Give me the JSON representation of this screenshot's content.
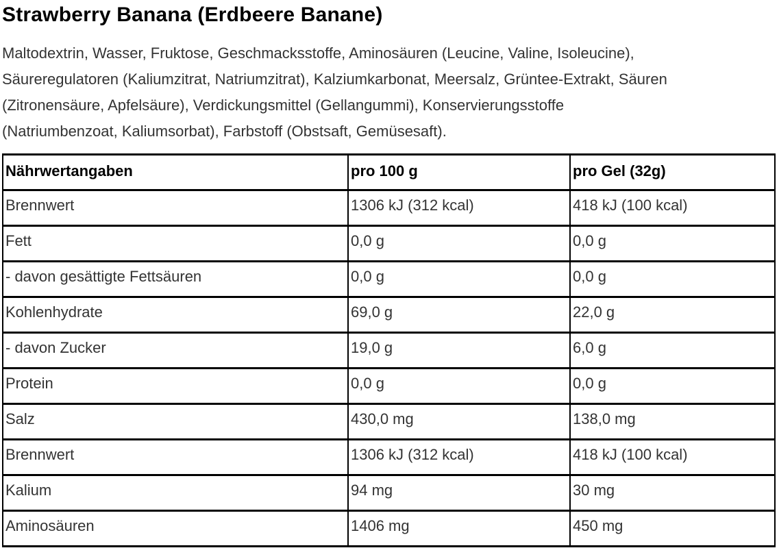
{
  "page": {
    "title": "Strawberry Banana (Erdbeere Banane)",
    "ingredients": "Maltodextrin, Wasser, Fruktose, Geschmacksstoffe, Aminosäuren (Leucine, Valine, Isoleucine),\nSäureregulatoren (Kaliumzitrat, Natriumzitrat), Kalziumkarbonat, Meersalz, Grüntee-Extrakt, Säuren\n(Zitronensäure, Apfelsäure), Verdickungsmittel (Gellangummi), Konservierungsstoffe\n(Natriumbenzoat, Kaliumsorbat), Farbstoff (Obstsaft, Gemüsesaft)."
  },
  "colors": {
    "title_text": "#000000",
    "body_text": "#333333",
    "table_border": "#000000",
    "background": "#ffffff"
  },
  "nutrition_table": {
    "headers": [
      "Nährwertangaben",
      "pro 100 g",
      "pro Gel (32g)"
    ],
    "rows": [
      {
        "label": "Brennwert",
        "per_100g": "1306 kJ (312 kcal)",
        "per_gel": "418 kJ (100 kcal)"
      },
      {
        "label": "Fett",
        "per_100g": "0,0 g",
        "per_gel": "0,0 g"
      },
      {
        "label": "- davon gesättigte Fettsäuren",
        "per_100g": "0,0 g",
        "per_gel": "0,0 g"
      },
      {
        "label": "Kohlenhydrate",
        "per_100g": "69,0 g",
        "per_gel": "22,0 g"
      },
      {
        "label": "- davon Zucker",
        "per_100g": "19,0 g",
        "per_gel": "6,0 g"
      },
      {
        "label": "Protein",
        "per_100g": "0,0 g",
        "per_gel": "0,0 g"
      },
      {
        "label": "Salz",
        "per_100g": "430,0 mg",
        "per_gel": "138,0 mg"
      },
      {
        "label": "Brennwert",
        "per_100g": "1306 kJ (312 kcal)",
        "per_gel": "418 kJ (100 kcal)"
      },
      {
        "label": "Kalium",
        "per_100g": "94 mg",
        "per_gel": "30 mg"
      },
      {
        "label": "Aminosäuren",
        "per_100g": "1406 mg",
        "per_gel": "450 mg"
      }
    ]
  }
}
